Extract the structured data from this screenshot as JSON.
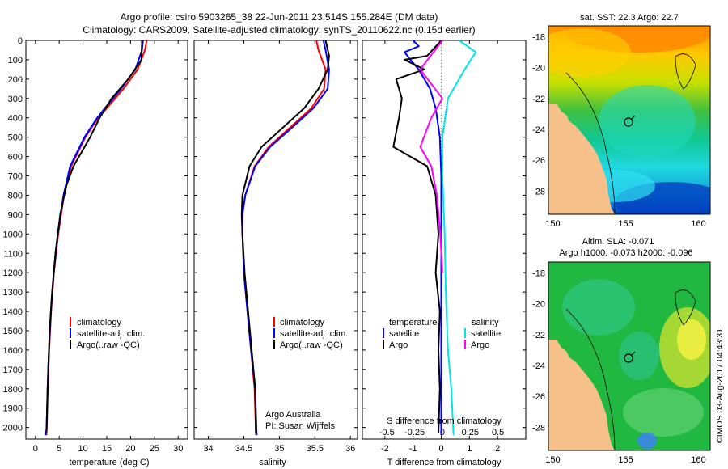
{
  "title_line1": "Argo profile: csiro 5903265_38 22-Jun-2011 23.514S 155.284E (DM data)",
  "title_line2": "Climatology: CARS2009. Satellite-adjusted climatology: synTS_20110622.nc (0.15d earlier)",
  "colors": {
    "climatology": "#ff0000",
    "satellite": "#0000ff",
    "argo": "#000000",
    "sal_sat": "#00e5e5",
    "sal_argo": "#ff00ff"
  },
  "depth_axis": {
    "ylim": [
      0,
      2060
    ],
    "ticks": [
      "0",
      "100",
      "200",
      "300",
      "400",
      "500",
      "600",
      "700",
      "800",
      "900",
      "1000",
      "1100",
      "1200",
      "1300",
      "1400",
      "1500",
      "1600",
      "1700",
      "1800",
      "1900",
      "2000"
    ]
  },
  "chart_data": [
    {
      "type": "line",
      "name": "temperature-panel",
      "xlabel": "temperature (deg C)",
      "xlim": [
        -2,
        32
      ],
      "xticks": [
        "0",
        "5",
        "10",
        "15",
        "20",
        "25",
        "30"
      ],
      "legend": [
        "climatology",
        "satellite-adj. clim.",
        "Argo(..raw -QC)"
      ],
      "series": [
        {
          "name": "climatology",
          "color": "#ff0000",
          "x": [
            23.4,
            23.0,
            21.5,
            18.5,
            15.0,
            13.2,
            10.5,
            7.5,
            6.0,
            4.8,
            3.9,
            3.3,
            2.9,
            2.6,
            2.4,
            2.3
          ],
          "y": [
            0,
            50,
            150,
            250,
            350,
            400,
            500,
            650,
            800,
            1000,
            1200,
            1400,
            1600,
            1800,
            2000,
            2040
          ]
        },
        {
          "name": "satellite",
          "color": "#0000ff",
          "x": [
            22.6,
            22.4,
            21.0,
            18.0,
            14.6,
            13.0,
            10.3,
            7.3,
            5.9,
            4.7,
            3.85,
            3.25,
            2.85,
            2.55,
            2.35,
            2.2
          ],
          "y": [
            0,
            50,
            150,
            250,
            350,
            400,
            500,
            650,
            800,
            1000,
            1200,
            1400,
            1600,
            1800,
            2000,
            2040
          ]
        },
        {
          "name": "argo",
          "color": "#000000",
          "x": [
            22.4,
            22.3,
            19.5,
            16.0,
            13.5,
            11.5,
            8.0,
            6.5,
            5.2,
            4.2,
            3.5,
            3.0,
            2.7,
            2.5,
            2.35,
            2.3
          ],
          "y": [
            0,
            100,
            200,
            300,
            400,
            500,
            650,
            750,
            900,
            1100,
            1300,
            1500,
            1700,
            1850,
            2000,
            2030
          ]
        }
      ]
    },
    {
      "type": "line",
      "name": "salinity-panel",
      "xlabel": "salinity",
      "xlim": [
        33.8,
        36.1
      ],
      "xticks": [
        "34",
        "34.5",
        "35",
        "35.5",
        "36"
      ],
      "legend": [
        "climatology",
        "satellite-adj. clim.",
        "Argo(..raw -QC)"
      ],
      "credit": [
        "Argo Australia",
        "PI: Susan Wijffels"
      ],
      "series": [
        {
          "name": "climatology",
          "color": "#ff0000",
          "x": [
            35.52,
            35.55,
            35.65,
            35.63,
            35.45,
            35.15,
            34.85,
            34.65,
            34.52,
            34.48,
            34.48,
            34.5,
            34.55,
            34.6,
            34.65,
            34.67
          ],
          "y": [
            0,
            50,
            150,
            250,
            350,
            450,
            550,
            650,
            800,
            900,
            1000,
            1200,
            1400,
            1600,
            1800,
            2040
          ]
        },
        {
          "name": "satellite",
          "color": "#0000ff",
          "x": [
            35.62,
            35.65,
            35.7,
            35.68,
            35.48,
            35.18,
            34.87,
            34.66,
            34.52,
            34.48,
            34.48,
            34.5,
            34.55,
            34.6,
            34.66,
            34.68
          ],
          "y": [
            0,
            50,
            150,
            250,
            350,
            450,
            550,
            650,
            800,
            900,
            1000,
            1200,
            1400,
            1600,
            1800,
            2040
          ]
        },
        {
          "name": "argo",
          "color": "#000000",
          "x": [
            35.65,
            35.7,
            35.68,
            35.55,
            35.35,
            35.05,
            34.75,
            34.58,
            34.48,
            34.47,
            34.48,
            34.51,
            34.56,
            34.61,
            34.66,
            34.67
          ],
          "y": [
            0,
            80,
            150,
            250,
            350,
            450,
            550,
            650,
            800,
            900,
            1000,
            1200,
            1400,
            1600,
            1800,
            2030
          ]
        }
      ]
    },
    {
      "type": "line",
      "name": "difference-panel",
      "xlabel": "T difference from climatology",
      "x2label": "S difference from climatology",
      "xlim": [
        -2.8,
        3.0
      ],
      "xticks": [
        "-2",
        "-1",
        "0",
        "1",
        "2"
      ],
      "x2ticks": [
        "-0.5",
        "-0.25",
        "0",
        "0.25",
        "0.5"
      ],
      "legend_temp": [
        "temperature",
        "satellite",
        "Argo"
      ],
      "legend_sal": [
        "salinity",
        "satellite",
        "Argo"
      ],
      "series": [
        {
          "name": "T satellite",
          "color": "#0000ff",
          "x": [
            -1.0,
            -0.8,
            -1.3,
            -1.1,
            -0.8,
            -0.4,
            -0.2,
            -0.05,
            0,
            0,
            0,
            0
          ],
          "y": [
            0,
            30,
            60,
            100,
            150,
            250,
            350,
            500,
            700,
            1000,
            1500,
            2040
          ]
        },
        {
          "name": "T argo",
          "color": "#000000",
          "x": [
            0,
            -0.5,
            -1.3,
            -0.6,
            -1.6,
            -1.4,
            -1.5,
            -1.7,
            -0.5,
            -0.2,
            -0.1,
            -0.2,
            -0.05,
            -0.1,
            -0.05,
            -0.1
          ],
          "y": [
            0,
            80,
            100,
            150,
            200,
            300,
            400,
            550,
            650,
            800,
            1000,
            1200,
            1400,
            1600,
            1800,
            2030
          ]
        },
        {
          "name": "S satellite",
          "color": "#00e5e5",
          "x": [
            0.15,
            0.3,
            0.2,
            0.05,
            0.0,
            0.0,
            0.02,
            0.03,
            0.05,
            0.08,
            0.1
          ],
          "y": [
            0,
            60,
            150,
            300,
            500,
            700,
            1000,
            1300,
            1600,
            1800,
            2040
          ]
        },
        {
          "name": "S argo",
          "color": "#ff00ff",
          "x": [
            0.0,
            -0.2,
            0.0,
            -0.1,
            -0.2,
            -0.1,
            -0.05,
            -0.02,
            0.0
          ],
          "y": [
            0,
            150,
            300,
            400,
            550,
            650,
            800,
            1000,
            1200
          ]
        }
      ]
    }
  ],
  "map_top": {
    "title": "sat. SST: 22.3  Argo: 22.7",
    "yticks": [
      "-18",
      "-20",
      "-22",
      "-24",
      "-26",
      "-28"
    ],
    "xticks": [
      "150",
      "155",
      "160"
    ]
  },
  "map_bottom": {
    "title1": "Altim. SLA: -0.071",
    "title2": "Argo h1000: -0.073 h2000: -0.096",
    "yticks": [
      "-18",
      "-20",
      "-22",
      "-24",
      "-26",
      "-28"
    ],
    "xticks": [
      "150",
      "155",
      "160"
    ]
  },
  "timestamp": "©IMOS 03-Aug-2017 04:43:31"
}
